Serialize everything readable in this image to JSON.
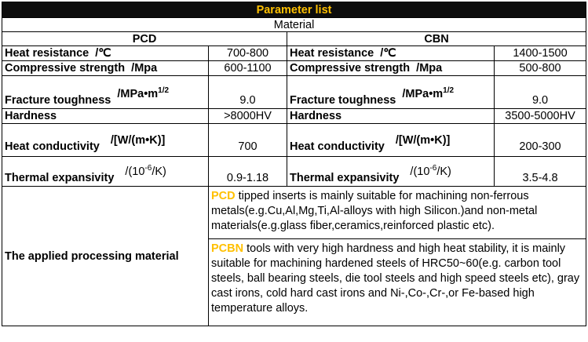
{
  "table": {
    "title": "Parameter list",
    "material_label": "Material",
    "pcd_header": "PCD",
    "cbn_header": "CBN",
    "rows": [
      {
        "label": "Heat resistance",
        "unit": "/℃",
        "pcd": "700-800",
        "cbn": "1400-1500"
      },
      {
        "label": "Compressive strength",
        "unit": "/Mpa",
        "pcd": "600-1100",
        "cbn": "500-800"
      },
      {
        "label": "Fracture toughness",
        "unit": "/MPa•m",
        "unit_sup": "1/2",
        "pcd": "9.0",
        "cbn": "9.0"
      },
      {
        "label": "Hardness",
        "unit": "",
        "pcd": ">8000HV",
        "cbn": "3500-5000HV"
      },
      {
        "label": "Heat conductivity",
        "unit": "/[W/(m•K)]",
        "pcd": "700",
        "cbn": "200-300"
      },
      {
        "label": "Thermal expansivity",
        "unit_pre": "/(10",
        "unit_sup": "-6",
        "unit_post": "/K)",
        "pcd": "0.9-1.18",
        "cbn": "3.5-4.8"
      }
    ],
    "applied": {
      "label": "The applied processing material",
      "pcd_key": "PCD",
      "pcd_text": " tipped inserts is mainly suitable for machining non-ferrous metals(e.g.Cu,Al,Mg,Ti,Al-alloys with high Silicon.)and non-metal materials(e.g.glass fiber,ceramics,reinforced plastic etc).",
      "pcbn_key": "PCBN",
      "pcbn_text": " tools with very high hardness and high heat stability, it is mainly suitable for machining hardened steels of HRC50~60(e.g. carbon tool steels, ball bearing steels, die tool steels and high speed steels etc), gray cast irons, cold hard cast irons and Ni-,Co-,Cr-,or Fe-based high temperature alloys."
    }
  },
  "colors": {
    "title_bg": "#0d0d0d",
    "highlight": "#ffc000"
  }
}
